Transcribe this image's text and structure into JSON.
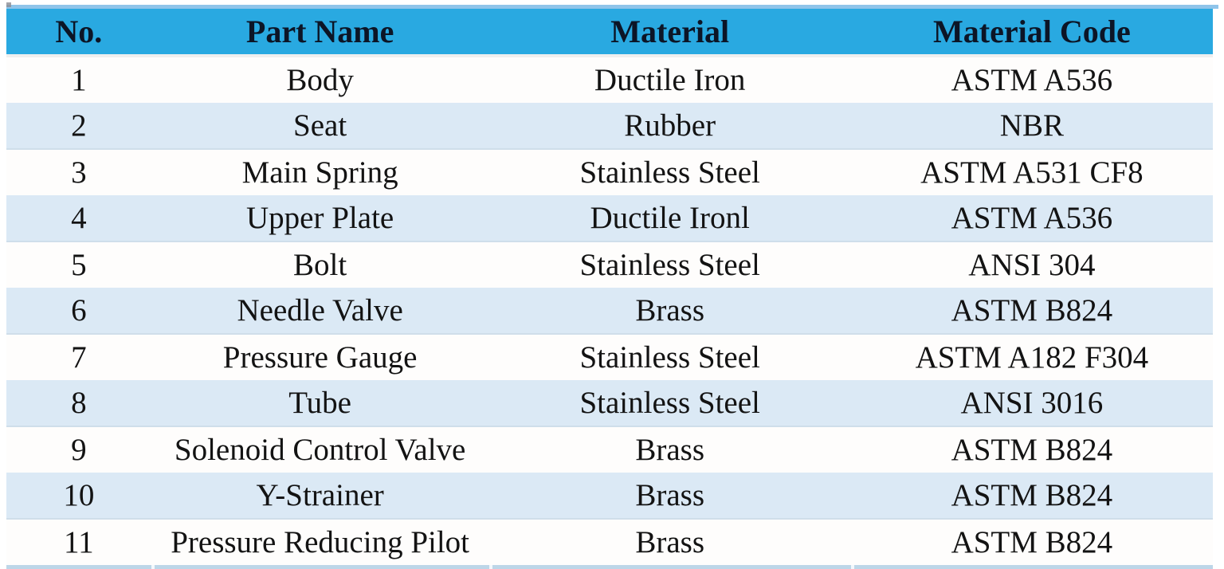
{
  "table": {
    "headers": [
      "No.",
      "Part Name",
      "Material",
      "Material Code"
    ],
    "rows": [
      {
        "no": "1",
        "part": "Body",
        "material": "Ductile Iron",
        "code": "ASTM A536"
      },
      {
        "no": "2",
        "part": "Seat",
        "material": "Rubber",
        "code": "NBR"
      },
      {
        "no": "3",
        "part": "Main Spring",
        "material": "Stainless Steel",
        "code": "ASTM A531 CF8"
      },
      {
        "no": "4",
        "part": "Upper Plate",
        "material": "Ductile Ironl",
        "code": "ASTM A536"
      },
      {
        "no": "5",
        "part": "Bolt",
        "material": "Stainless Steel",
        "code": "ANSI 304"
      },
      {
        "no": "6",
        "part": "Needle Valve",
        "material": "Brass",
        "code": "ASTM B824"
      },
      {
        "no": "7",
        "part": "Pressure Gauge",
        "material": "Stainless Steel",
        "code": "ASTM A182 F304"
      },
      {
        "no": "8",
        "part": "Tube",
        "material": "Stainless Steel",
        "code": "ANSI 3016"
      },
      {
        "no": "9",
        "part": "Solenoid Control Valve",
        "material": "Brass",
        "code": "ASTM B824"
      },
      {
        "no": "10",
        "part": "Y-Strainer",
        "material": "Brass",
        "code": "ASTM B824"
      },
      {
        "no": "11",
        "part": "Pressure Reducing Pilot",
        "material": "Brass",
        "code": "ASTM B824"
      }
    ],
    "colors": {
      "header_bg": "#29A9E1",
      "band_row_bg": "#DBE9F5",
      "top_border": "#8FC4EA",
      "bottom_border": "#BDD6E8",
      "header_text": "#0C1526",
      "body_text": "#131313"
    }
  }
}
